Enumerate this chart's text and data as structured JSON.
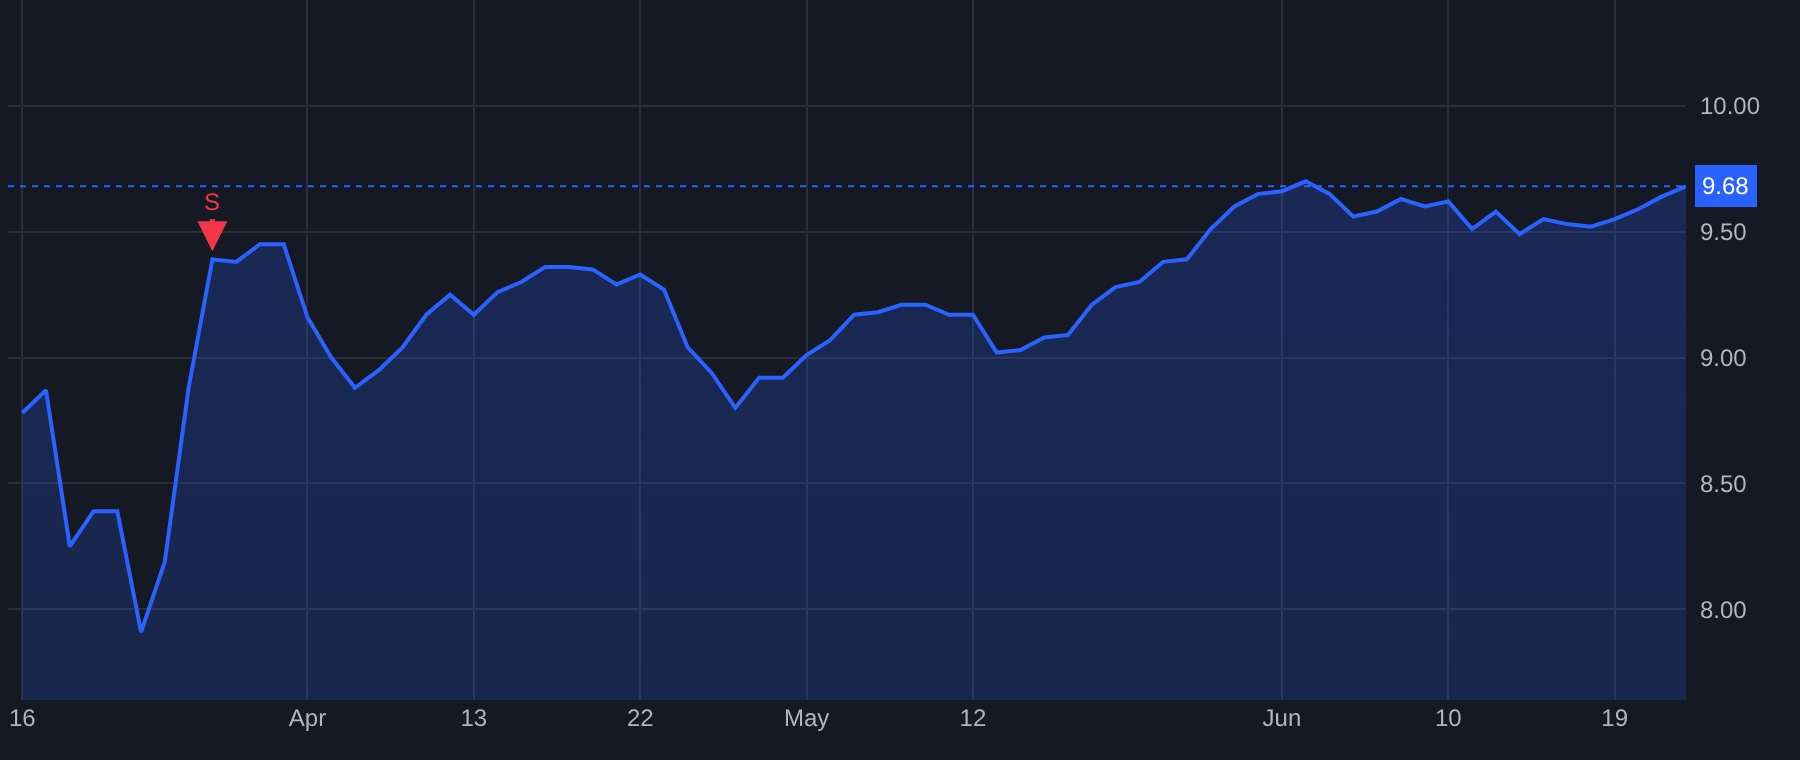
{
  "chart_data": {
    "type": "area",
    "categories": [
      "16",
      null,
      null,
      null,
      null,
      null,
      null,
      null,
      null,
      null,
      null,
      null,
      "Apr",
      null,
      null,
      null,
      null,
      null,
      null,
      "13",
      null,
      null,
      null,
      null,
      null,
      null,
      "22",
      null,
      null,
      null,
      null,
      null,
      null,
      "May",
      null,
      null,
      null,
      null,
      null,
      null,
      "12",
      null,
      null,
      null,
      null,
      null,
      null,
      null,
      null,
      null,
      null,
      null,
      null,
      "Jun",
      null,
      null,
      null,
      null,
      null,
      null,
      "10",
      null,
      null,
      null,
      null,
      null,
      null,
      "19",
      null,
      null,
      null
    ],
    "series": [
      {
        "color": "#2962ff",
        "values": [
          8.78,
          8.87,
          8.25,
          8.39,
          8.39,
          7.91,
          8.19,
          8.88,
          9.39,
          9.38,
          9.45,
          9.45,
          9.16,
          9.0,
          8.88,
          8.95,
          9.04,
          9.17,
          9.25,
          9.17,
          9.26,
          9.3,
          9.36,
          9.36,
          9.35,
          9.29,
          9.33,
          9.27,
          9.04,
          8.94,
          8.8,
          8.92,
          8.92,
          9.01,
          9.07,
          9.17,
          9.18,
          9.21,
          9.21,
          9.17,
          9.17,
          9.02,
          9.03,
          9.08,
          9.09,
          9.21,
          9.28,
          9.3,
          9.38,
          9.39,
          9.51,
          9.6,
          9.65,
          9.66,
          9.7,
          9.65,
          9.56,
          9.58,
          9.63,
          9.6,
          9.62,
          9.51,
          9.58,
          9.49,
          9.55,
          9.53,
          9.52,
          9.55,
          9.59,
          9.64,
          9.68
        ]
      }
    ],
    "ylim": [
      7.64,
      10.42
    ],
    "yticks": [
      {
        "value": 8,
        "label": "8.00"
      },
      {
        "value": 8.5,
        "label": "8.50"
      },
      {
        "value": 9,
        "label": "9.00"
      },
      {
        "value": 9.5,
        "label": "9.50"
      },
      {
        "value": 10,
        "label": "10.00"
      }
    ],
    "grid": true,
    "marker": "none",
    "line_style": "solid",
    "ref_lines": [
      {
        "axis": "y",
        "value": 9.68,
        "label": "9.68",
        "color": "#2962ff",
        "line_style": "dotted"
      }
    ],
    "annotations": [
      {
        "text": "S",
        "y": 9.39
      }
    ]
  }
}
